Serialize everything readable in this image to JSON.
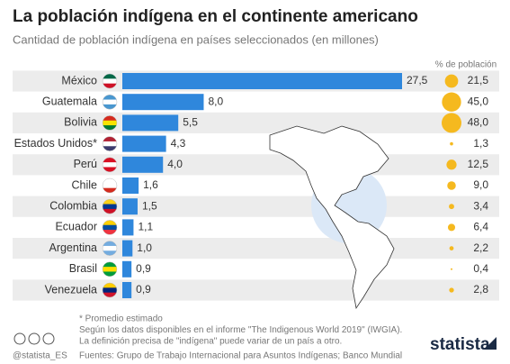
{
  "chart_data": {
    "type": "bar",
    "title": "La población indígena en el continente americano",
    "subtitle": "Cantidad de población indígena en países seleccionados (en millones)",
    "categories": [
      "México",
      "Guatemala",
      "Bolivia",
      "Estados Unidos*",
      "Perú",
      "Chile",
      "Colombia",
      "Ecuador",
      "Argentina",
      "Brasil",
      "Venezuela"
    ],
    "values": [
      27.5,
      8.0,
      5.5,
      4.3,
      4.0,
      1.6,
      1.5,
      1.1,
      1.0,
      0.9,
      0.9
    ],
    "value_labels": [
      "27,5",
      "8,0",
      "5,5",
      "4,3",
      "4,0",
      "1,6",
      "1,5",
      "1,1",
      "1,0",
      "0,9",
      "0,9"
    ],
    "color": "#2f87dc",
    "share": {
      "name": "% de población",
      "color": "#f5b91f",
      "values": [
        21.5,
        45.0,
        48.0,
        1.3,
        12.5,
        9.0,
        3.4,
        6.4,
        2.2,
        0.4,
        2.8
      ],
      "value_labels": [
        "21,5",
        "45,0",
        "48,0",
        "1,3",
        "12,5",
        "9,0",
        "3,4",
        "6,4",
        "2,2",
        "0,4",
        "2,8"
      ]
    },
    "notes": [
      "* Promedio estimado",
      "Según los datos disponibles en el informe \"The Indigenous World 2019\" (IWGIA).",
      "La definición precisa de \"indígena\" puede variar de un país a otro."
    ],
    "source": "Fuentes: Grupo de Trabajo Internacional para Asuntos Indígenas; Banco Mundial",
    "handle": "@statista_ES",
    "brand": "statista"
  }
}
